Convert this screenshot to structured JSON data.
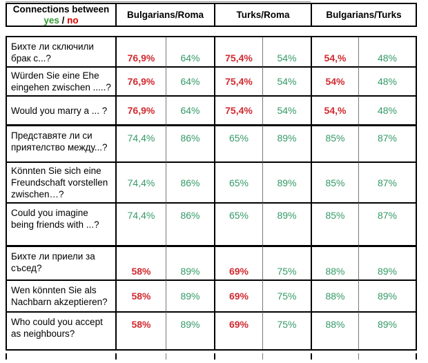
{
  "header": {
    "title": "Connections between",
    "yes_label": "yes",
    "separator": " / ",
    "no_label": "no",
    "columns": [
      "Bulgarians/Roma",
      "Turks/Roma",
      "Bulgarians/Turks"
    ]
  },
  "colors": {
    "yes_green": "#339933",
    "no_red": "#dd0000",
    "value_green": "#339966",
    "value_red": "#d02a30",
    "grid_black": "#000000",
    "subgrid_gray": "#777777"
  },
  "table": {
    "rows": [
      {
        "question": "Бихте ли сключили\nбрак с...?",
        "values": [
          "76,9%",
          "64%",
          "75,4%",
          "54%",
          "54,%",
          "48%"
        ],
        "value_colors": [
          "red",
          "green",
          "red",
          "green",
          "red",
          "green"
        ],
        "group_start": false,
        "valign": "bottom",
        "qalign": "top"
      },
      {
        "question": "Würden Sie eine Ehe\neingehen zwischen .....?",
        "values": [
          "76,9%",
          "64%",
          "75,4%",
          "54%",
          "54%",
          "48%"
        ],
        "value_colors": [
          "red",
          "green",
          "red",
          "green",
          "red",
          "green"
        ],
        "group_start": false,
        "valign": "center",
        "qalign": "center"
      },
      {
        "question": "Would you marry a ... ?",
        "values": [
          "76,9%",
          "64%",
          "75,4%",
          "54%",
          "54,%",
          "48%"
        ],
        "value_colors": [
          "red",
          "green",
          "red",
          "green",
          "red",
          "green"
        ],
        "group_start": false,
        "valign": "center",
        "qalign": "center"
      },
      {
        "question": "Представяте ли си\nприятелство между...?",
        "values": [
          "74,4%",
          "86%",
          "65%",
          "89%",
          "85%",
          "87%"
        ],
        "value_colors": [
          "green",
          "green",
          "green",
          "green",
          "green",
          "green"
        ],
        "group_start": true,
        "valign": "top",
        "qalign": "top"
      },
      {
        "question": "Könnten Sie sich eine\nFreundschaft vorstellen\nzwischen…?",
        "values": [
          "74,4%",
          "86%",
          "65%",
          "89%",
          "85%",
          "87%"
        ],
        "value_colors": [
          "green",
          "green",
          "green",
          "green",
          "green",
          "green"
        ],
        "group_start": false,
        "valign": "center",
        "qalign": "center"
      },
      {
        "question": "Could you imagine\nbeing friends with ...?",
        "values": [
          "74,4%",
          "86%",
          "65%",
          "89%",
          "85%",
          "87%"
        ],
        "value_colors": [
          "green",
          "green",
          "green",
          "green",
          "green",
          "green"
        ],
        "group_start": false,
        "valign": "top",
        "qalign": "top"
      },
      {
        "question": "Бихте ли приели за\nсъсед?",
        "values": [
          "58%",
          "89%",
          "69%",
          "75%",
          "88%",
          "89%"
        ],
        "value_colors": [
          "red",
          "green",
          "red",
          "green",
          "green",
          "green"
        ],
        "group_start": true,
        "valign": "bottom",
        "qalign": "top"
      },
      {
        "question": "Wen könnten Sie als\nNachbarn akzeptieren?",
        "values": [
          "58%",
          "89%",
          "69%",
          "75%",
          "88%",
          "89%"
        ],
        "value_colors": [
          "red",
          "green",
          "red",
          "green",
          "green",
          "green"
        ],
        "group_start": false,
        "valign": "center",
        "qalign": "center"
      },
      {
        "question": "Who could you accept\nas neighbours?",
        "values": [
          "58%",
          "89%",
          "69%",
          "75%",
          "88%",
          "89%"
        ],
        "value_colors": [
          "red",
          "green",
          "red",
          "green",
          "green",
          "green"
        ],
        "group_start": false,
        "valign": "top",
        "qalign": "top"
      }
    ]
  }
}
